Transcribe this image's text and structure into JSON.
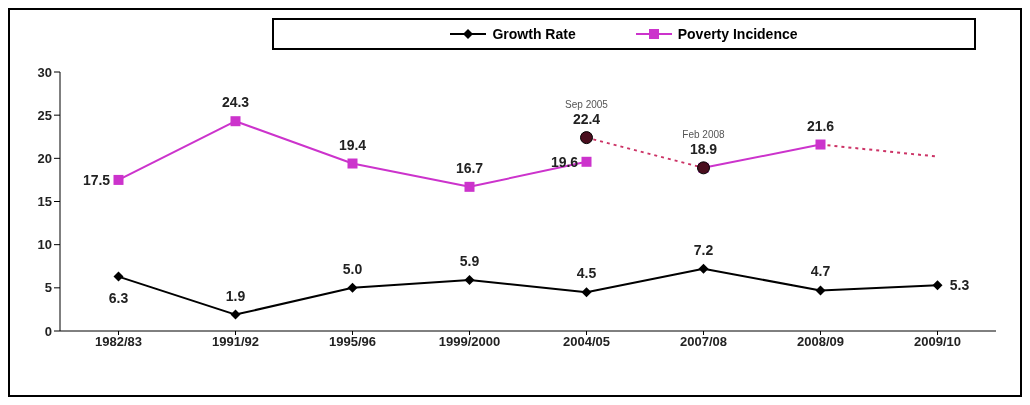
{
  "chart_data": {
    "type": "line",
    "categories": [
      "1982/83",
      "1991/92",
      "1995/96",
      "1999/2000",
      "2004/05",
      "2007/08",
      "2008/09",
      "2009/10"
    ],
    "ylim": [
      0,
      30
    ],
    "yticks": [
      0,
      5,
      10,
      15,
      20,
      25,
      30
    ],
    "legend": "top right",
    "series": [
      {
        "name": "Growth Rate",
        "color": "#000000",
        "marker": "diamond",
        "line_style": "solid",
        "values": [
          6.3,
          1.9,
          5.0,
          5.9,
          4.5,
          7.2,
          4.7,
          5.3
        ],
        "value_labels": [
          "6.3",
          "1.9",
          "5.0",
          "5.9",
          "4.5",
          "7.2",
          "4.7",
          "5.3"
        ]
      },
      {
        "name": "Poverty Incidence",
        "color": "#cc33cc",
        "marker": "square",
        "line_style": "solid",
        "values": [
          17.5,
          24.3,
          19.4,
          16.7,
          19.6,
          null,
          null,
          null
        ],
        "value_labels": [
          "17.5",
          "24.3",
          "19.4",
          "16.7",
          "19.6",
          null,
          null,
          null
        ]
      },
      {
        "color": "#cc33cc",
        "marker": "square",
        "line_style": "solid",
        "values": [
          null,
          null,
          null,
          null,
          null,
          18.9,
          21.6,
          null
        ],
        "value_labels": [
          null,
          null,
          null,
          null,
          null,
          null,
          "21.6",
          null
        ]
      },
      {
        "color": "#cc3366",
        "marker": "none",
        "line_style": "dotted",
        "values": [
          null,
          null,
          null,
          null,
          22.4,
          18.9,
          null,
          null
        ]
      },
      {
        "color": "#cc3366",
        "marker": "none",
        "line_style": "dotted",
        "values": [
          null,
          null,
          null,
          null,
          null,
          null,
          21.6,
          20.2
        ]
      },
      {
        "type": "scatter",
        "color": "#4a0e1e",
        "marker": "circle",
        "values": [
          null,
          null,
          null,
          null,
          22.4,
          18.9,
          null,
          null
        ],
        "value_labels": [
          null,
          null,
          null,
          null,
          "22.4",
          "18.9",
          null,
          null
        ]
      }
    ],
    "annotations": [
      {
        "text": "Sep 2005",
        "x": "2004/05",
        "y": 22.4
      },
      {
        "text": "Feb 2008",
        "x": "2007/08",
        "y": 18.9
      }
    ]
  }
}
